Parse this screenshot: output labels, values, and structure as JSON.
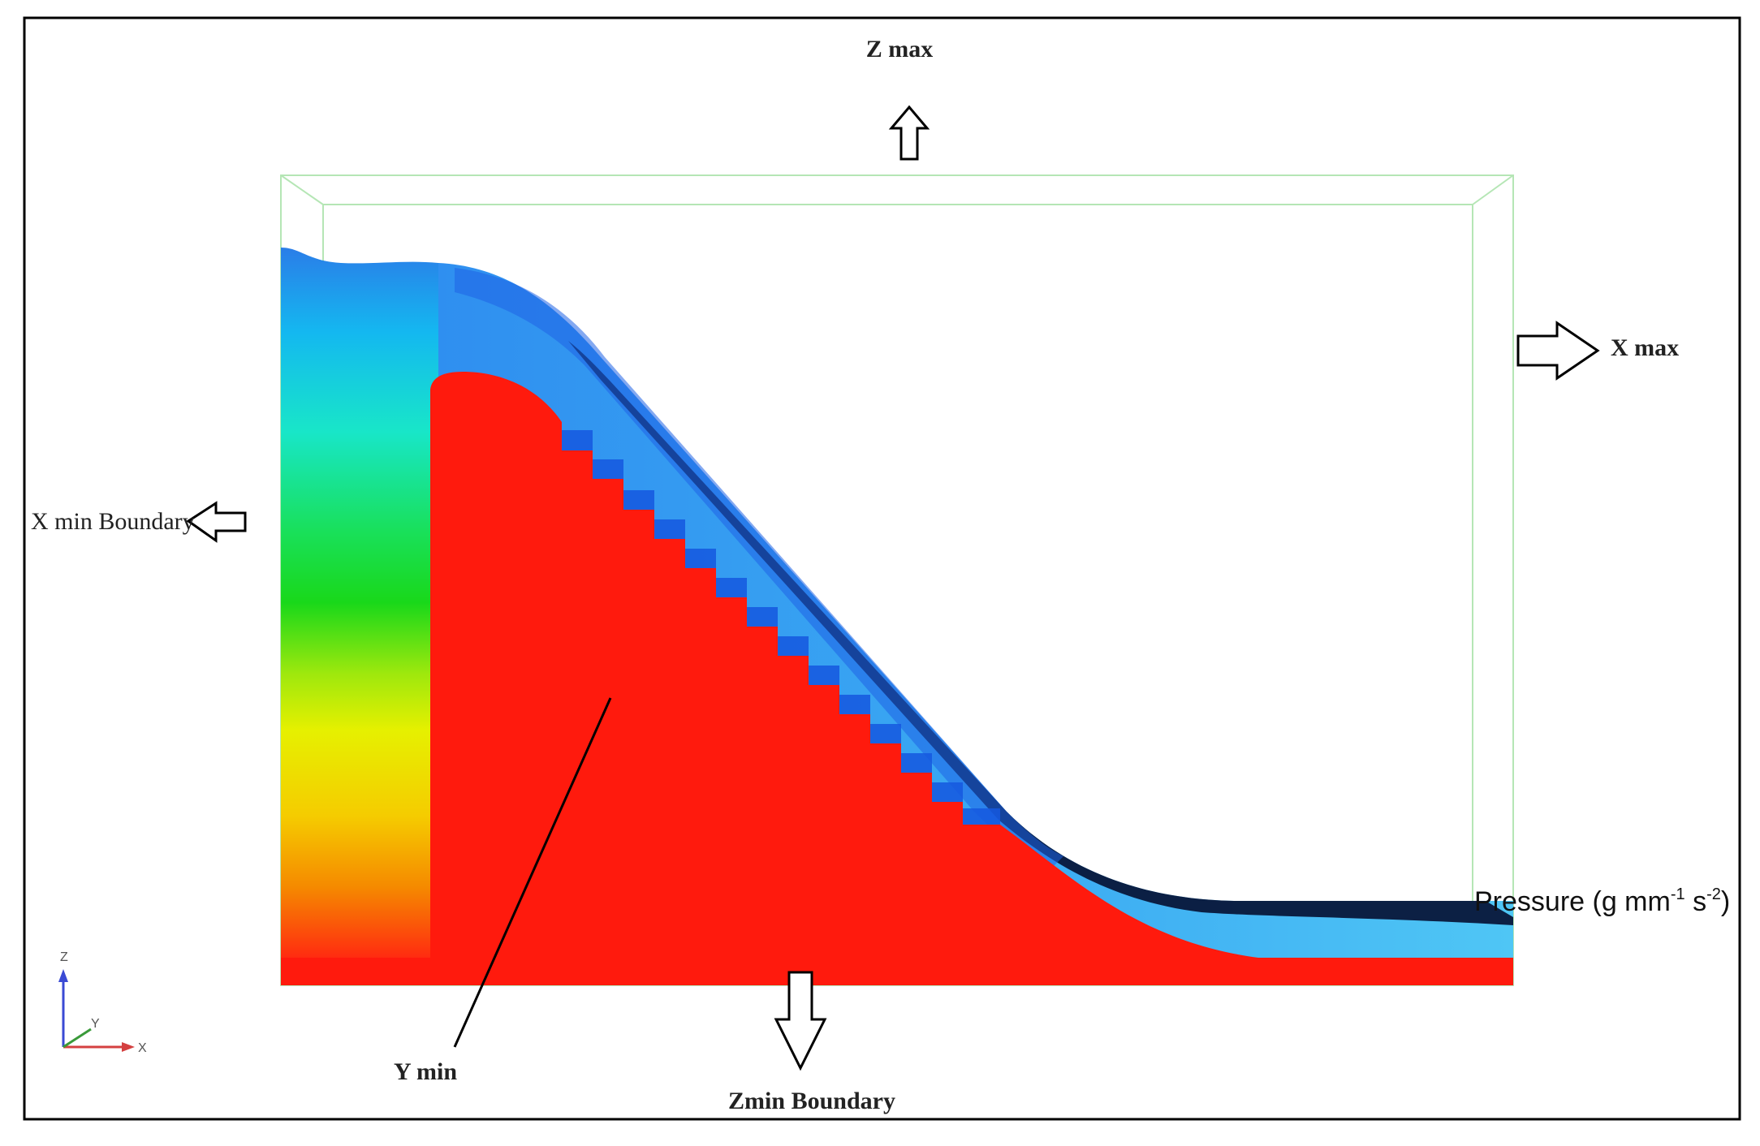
{
  "labels": {
    "z_max": "Z max",
    "x_max": "X max",
    "x_min": "X min Boundary",
    "y_min": "Y min",
    "z_min": "Zmin Boundary",
    "legend_prefix": "Pressure (g mm",
    "legend_exp1": "-1",
    "legend_mid": " s",
    "legend_exp2": "-2",
    "legend_suffix": ")"
  },
  "triad": {
    "z": "Z",
    "y": "Y",
    "x": "X"
  },
  "colors": {
    "frame": "#000000",
    "domain_box": "#b5e6b5",
    "terrain": "#ff1a0d",
    "water_deep": "#08173a",
    "water_mid": "#1b5fe8",
    "water_light": "#4fc3f7",
    "triad_x": "#d44040",
    "triad_y": "#3a9a3a",
    "triad_z": "#3a4ad4"
  }
}
